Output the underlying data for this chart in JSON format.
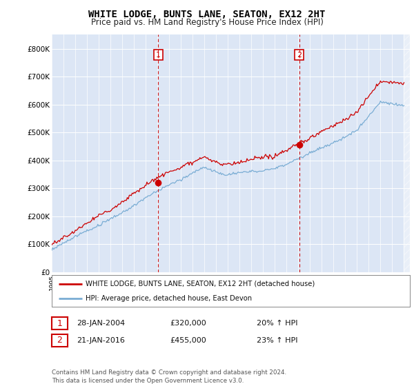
{
  "title": "WHITE LODGE, BUNTS LANE, SEATON, EX12 2HT",
  "subtitle": "Price paid vs. HM Land Registry's House Price Index (HPI)",
  "legend_label_red": "WHITE LODGE, BUNTS LANE, SEATON, EX12 2HT (detached house)",
  "legend_label_blue": "HPI: Average price, detached house, East Devon",
  "transaction1_date": "28-JAN-2004",
  "transaction1_price": "£320,000",
  "transaction1_hpi": "20% ↑ HPI",
  "transaction2_date": "21-JAN-2016",
  "transaction2_price": "£455,000",
  "transaction2_hpi": "23% ↑ HPI",
  "footer": "Contains HM Land Registry data © Crown copyright and database right 2024.\nThis data is licensed under the Open Government Licence v3.0.",
  "ylim": [
    0,
    850000
  ],
  "yticks": [
    0,
    100000,
    200000,
    300000,
    400000,
    500000,
    600000,
    700000,
    800000
  ],
  "ytick_labels": [
    "£0",
    "£100K",
    "£200K",
    "£300K",
    "£400K",
    "£500K",
    "£600K",
    "£700K",
    "£800K"
  ],
  "background_color": "#ffffff",
  "plot_bg_color": "#dce6f5",
  "red_color": "#cc0000",
  "blue_color": "#7aadd4",
  "marker1_x": 2004.07,
  "marker1_y": 320000,
  "marker2_x": 2016.07,
  "marker2_y": 455000,
  "vline1_x": 2004.07,
  "vline2_x": 2016.07,
  "xmin": 1995,
  "xmax": 2025.5
}
